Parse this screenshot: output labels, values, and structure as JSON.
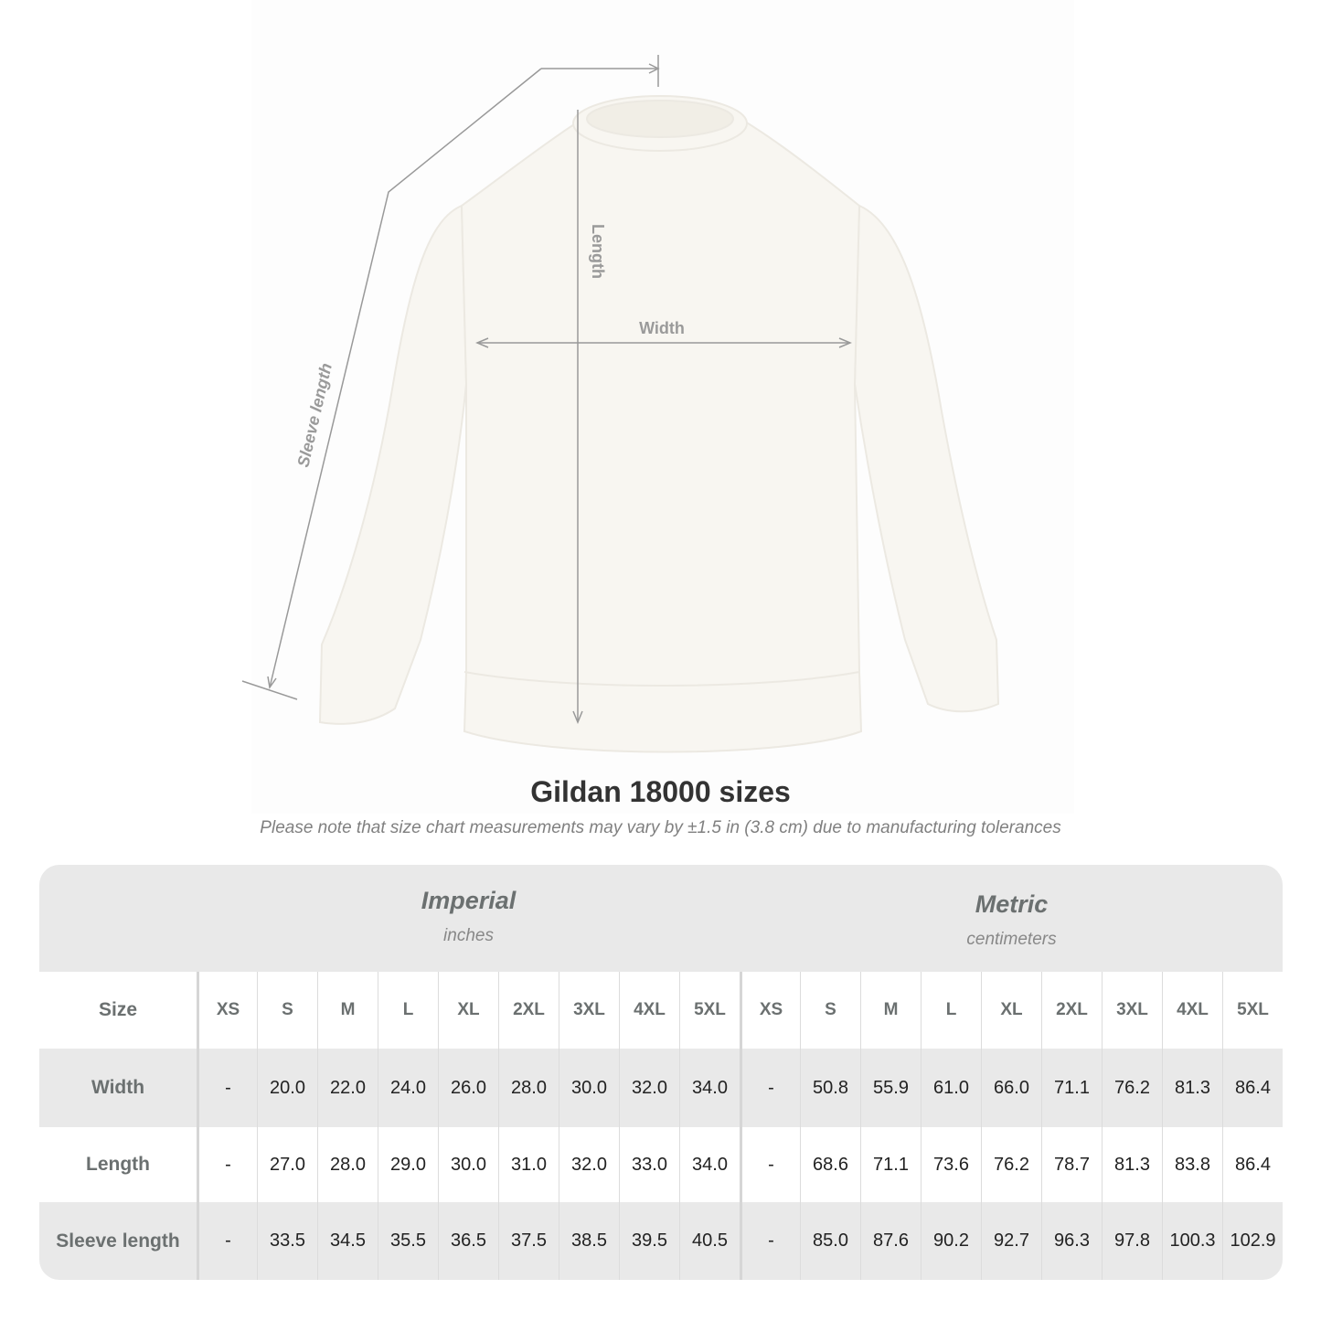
{
  "diagram": {
    "labels": {
      "length": "Length",
      "width": "Width",
      "sleeve_length": "Sleeve length"
    },
    "garment_color": "#f8f6f1",
    "line_color": "#999999"
  },
  "title": "Gildan 18000 sizes",
  "note": "Please note that size chart measurements may vary by ±1.5 in (3.8 cm) due to manufacturing tolerances",
  "table": {
    "imperial": {
      "name": "Imperial",
      "unit": "inches"
    },
    "metric": {
      "name": "Metric",
      "unit": "centimeters"
    },
    "size_label": "Size",
    "sizes": [
      "XS",
      "S",
      "M",
      "L",
      "XL",
      "2XL",
      "3XL",
      "4XL",
      "5XL"
    ],
    "rows": [
      {
        "label": "Width",
        "imperial": [
          "-",
          "20.0",
          "22.0",
          "24.0",
          "26.0",
          "28.0",
          "30.0",
          "32.0",
          "34.0"
        ],
        "metric": [
          "-",
          "50.8",
          "55.9",
          "61.0",
          "66.0",
          "71.1",
          "76.2",
          "81.3",
          "86.4"
        ]
      },
      {
        "label": "Length",
        "imperial": [
          "-",
          "27.0",
          "28.0",
          "29.0",
          "30.0",
          "31.0",
          "32.0",
          "33.0",
          "34.0"
        ],
        "metric": [
          "-",
          "68.6",
          "71.1",
          "73.6",
          "76.2",
          "78.7",
          "81.3",
          "83.8",
          "86.4"
        ]
      },
      {
        "label": "Sleeve length",
        "imperial": [
          "-",
          "33.5",
          "34.5",
          "35.5",
          "36.5",
          "37.5",
          "38.5",
          "39.5",
          "40.5"
        ],
        "metric": [
          "-",
          "85.0",
          "87.6",
          "90.2",
          "92.7",
          "96.3",
          "97.8",
          "100.3",
          "102.9"
        ]
      }
    ]
  }
}
